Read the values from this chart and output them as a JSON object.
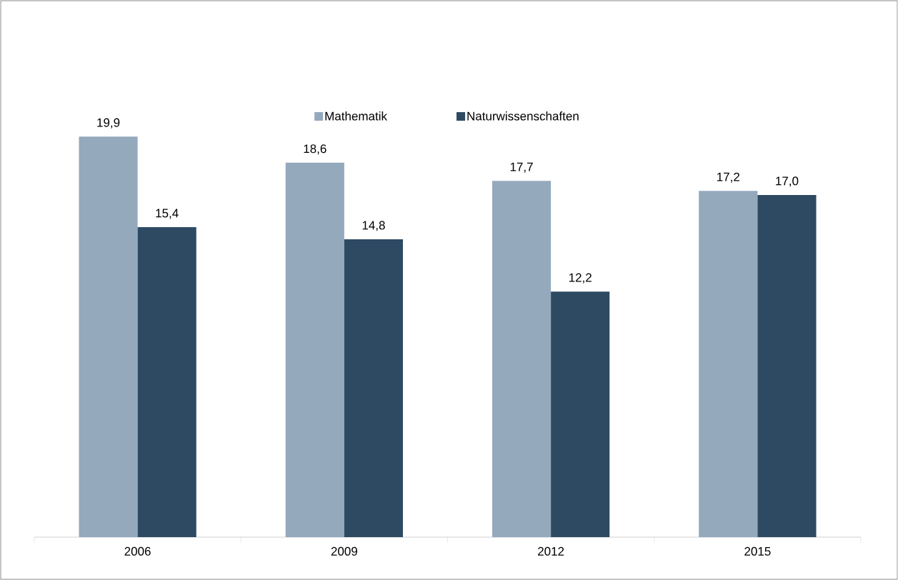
{
  "chart_data": {
    "type": "bar",
    "categories": [
      "2006",
      "2009",
      "2012",
      "2015"
    ],
    "series": [
      {
        "name": "Mathematik",
        "color": "#95a9bd",
        "values": [
          19.9,
          18.6,
          17.7,
          17.2
        ],
        "value_labels": [
          "19,9",
          "18,6",
          "17,7",
          "17,2"
        ]
      },
      {
        "name": "Naturwissenschaften",
        "color": "#2e4a63",
        "values": [
          15.4,
          14.8,
          12.2,
          17.0
        ],
        "value_labels": [
          "15,4",
          "14,8",
          "12,2",
          "17,0"
        ]
      }
    ],
    "legend": "top"
  }
}
